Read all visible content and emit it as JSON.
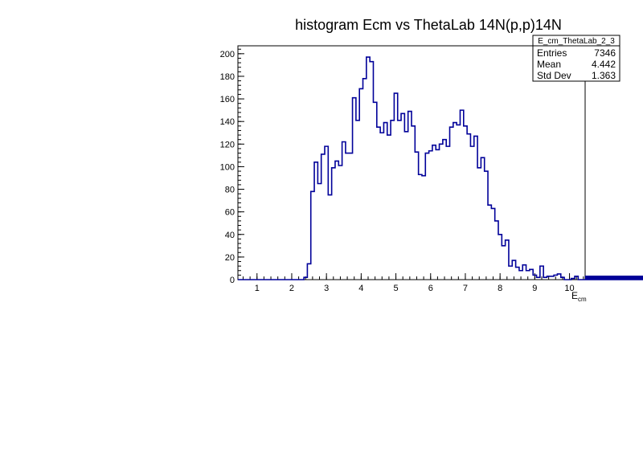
{
  "chart_data": {
    "type": "histogram",
    "title": "histogram Ecm vs ThetaLab 14N(p,p)14N",
    "xlabel": {
      "main": "E",
      "sub": "cm"
    },
    "ylabel": "",
    "xlim": [
      0.45,
      10.45
    ],
    "ylim": [
      0,
      207
    ],
    "x_ticks": [
      1,
      2,
      3,
      4,
      5,
      6,
      7,
      8,
      9,
      10
    ],
    "y_ticks": [
      0,
      20,
      40,
      60,
      80,
      100,
      120,
      140,
      160,
      180,
      200
    ],
    "bin_width": 0.1,
    "x_start": 0.45,
    "values": [
      0,
      0,
      0,
      0,
      0,
      0,
      0,
      0,
      0,
      0,
      0,
      0,
      0,
      0,
      0,
      0,
      0,
      0,
      0,
      2,
      14,
      78,
      104,
      85,
      111,
      118,
      75,
      99,
      105,
      101,
      122,
      112,
      112,
      161,
      141,
      169,
      178,
      197,
      193,
      157,
      135,
      130,
      139,
      128,
      141,
      165,
      141,
      147,
      131,
      149,
      136,
      113,
      93,
      92,
      112,
      114,
      119,
      115,
      120,
      124,
      118,
      135,
      139,
      137,
      150,
      136,
      129,
      118,
      127,
      99,
      108,
      96,
      66,
      63,
      52,
      40,
      30,
      35,
      12,
      17,
      11,
      8,
      13,
      8,
      9,
      4,
      2,
      12,
      2,
      3,
      3,
      4,
      5,
      2,
      0,
      0,
      1,
      3,
      0,
      0,
      0,
      3,
      0,
      0,
      0,
      1,
      2,
      1,
      2,
      2,
      0,
      0,
      2,
      0,
      0,
      0,
      0,
      2,
      1,
      1,
      2,
      2,
      0,
      0,
      0,
      1,
      2,
      0,
      2,
      1,
      0,
      0,
      2,
      0,
      0,
      0,
      3,
      1,
      0,
      0,
      2,
      0,
      0,
      0,
      0,
      3,
      0,
      2,
      1,
      0,
      1,
      0,
      0,
      0,
      2,
      0,
      1,
      1,
      0,
      2
    ],
    "line_color": "#000099",
    "grid": false
  },
  "stats_box": {
    "name": "E_cm_ThetaLab_2_3",
    "rows": [
      {
        "label": "Entries",
        "value": "7346"
      },
      {
        "label": "Mean",
        "value": "4.442"
      },
      {
        "label": "Std Dev",
        "value": "1.363"
      }
    ]
  }
}
